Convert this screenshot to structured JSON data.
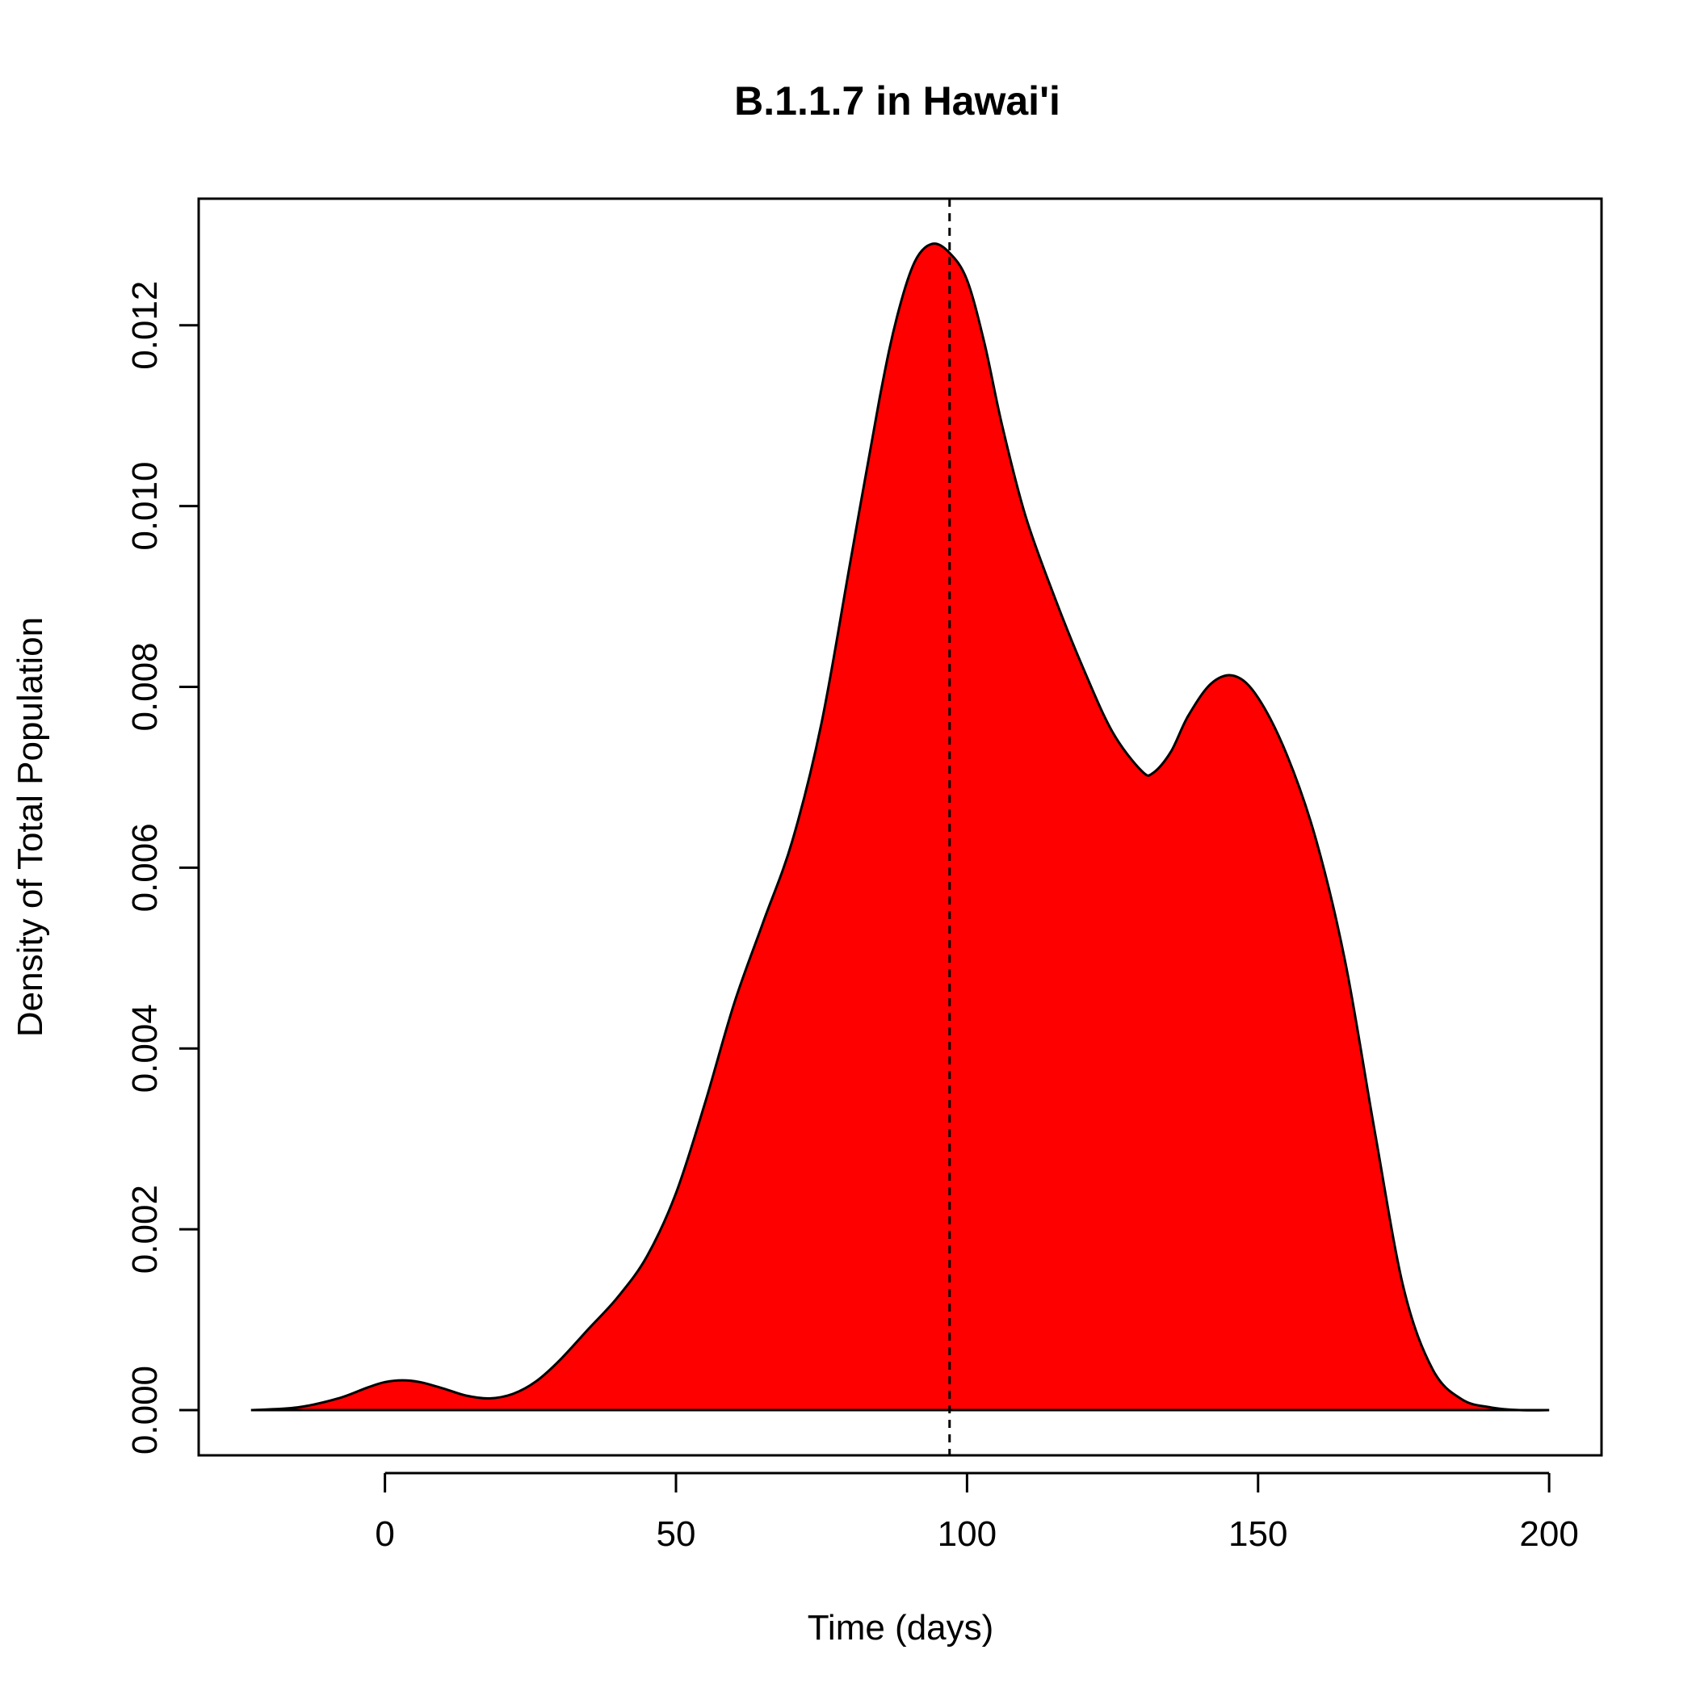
{
  "chart_data": {
    "type": "area",
    "title": "B.1.1.7 in Hawai'i",
    "xlabel": "Time (days)",
    "ylabel": "Density of Total Population",
    "xlim": [
      -32,
      209
    ],
    "ylim": [
      -0.0005,
      0.0134
    ],
    "xticks": [
      0,
      50,
      100,
      150,
      200
    ],
    "yticks": [
      0.0,
      0.002,
      0.004,
      0.006,
      0.008,
      0.01,
      0.012
    ],
    "xtick_labels": [
      "0",
      "50",
      "100",
      "150",
      "200"
    ],
    "ytick_labels": [
      "0.000",
      "0.002",
      "0.004",
      "0.006",
      "0.008",
      "0.010",
      "0.012"
    ],
    "fill_color": "#ff0000",
    "line_color": "#000000",
    "reference_line": {
      "x": 97,
      "style": "dashed"
    },
    "grid": false,
    "series": [
      {
        "x": [
          -23,
          -15,
          -8,
          -3,
          0,
          3,
          6,
          10,
          14,
          18,
          22,
          26,
          30,
          35,
          40,
          45,
          50,
          55,
          60,
          65,
          70,
          75,
          80,
          85,
          88,
          91,
          94,
          97,
          100,
          103,
          106,
          110,
          115,
          120,
          125,
          130,
          132,
          135,
          138,
          142,
          146,
          150,
          155,
          160,
          165,
          170,
          175,
          180,
          185,
          190,
          195,
          200
        ],
        "y": [
          0.0,
          3e-05,
          0.00013,
          0.00025,
          0.00031,
          0.00033,
          0.00031,
          0.00024,
          0.00016,
          0.00013,
          0.00018,
          0.00032,
          0.00055,
          0.0009,
          0.00125,
          0.0017,
          0.0024,
          0.0034,
          0.0045,
          0.0054,
          0.0063,
          0.0076,
          0.0094,
          0.0112,
          0.0121,
          0.0127,
          0.0129,
          0.0128,
          0.0125,
          0.0118,
          0.0109,
          0.0099,
          0.009,
          0.0082,
          0.0075,
          0.00707,
          0.00705,
          0.00728,
          0.00768,
          0.00804,
          0.00812,
          0.00788,
          0.00724,
          0.0063,
          0.00495,
          0.0031,
          0.00135,
          0.00045,
          0.00012,
          3e-05,
          0.0,
          0.0
        ]
      }
    ]
  }
}
